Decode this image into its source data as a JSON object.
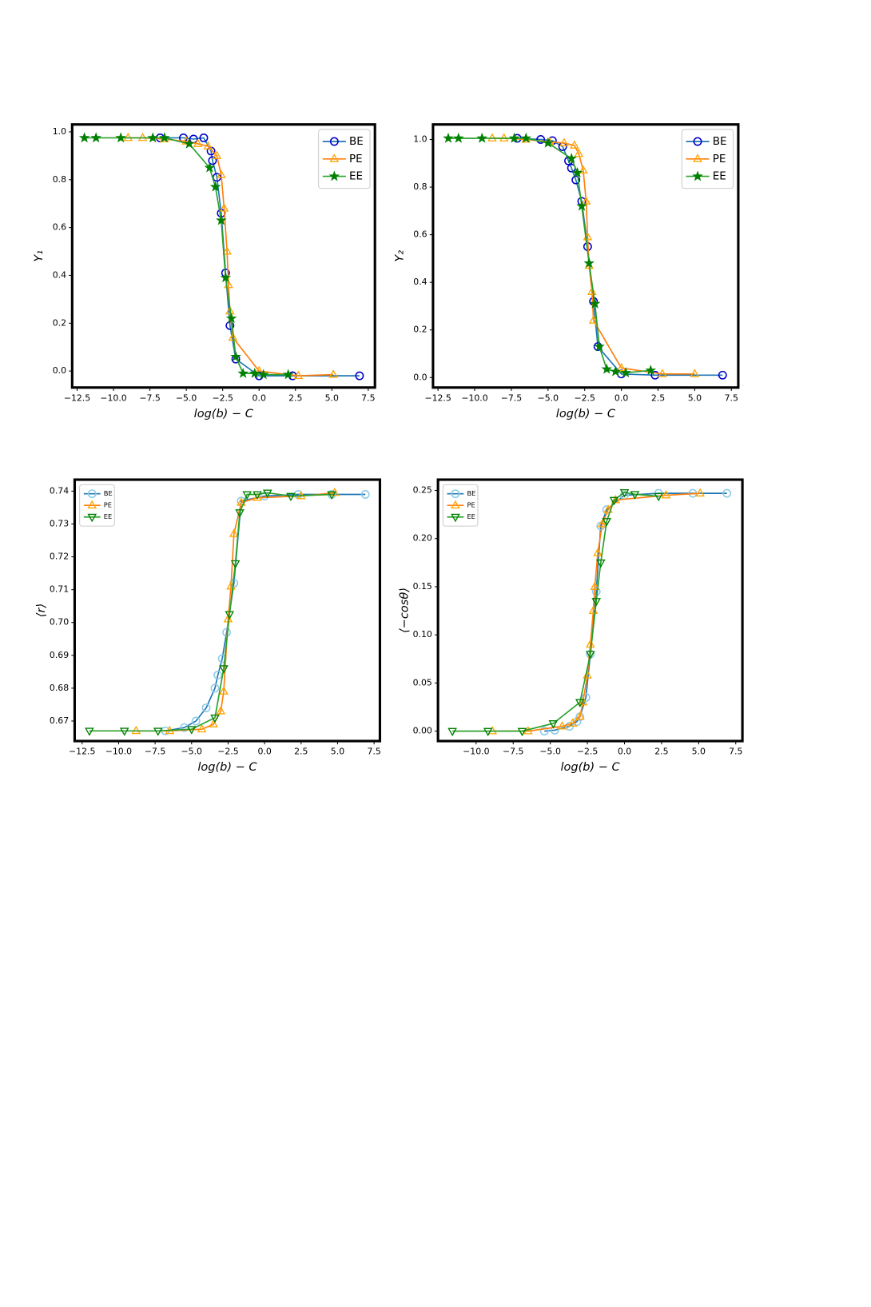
{
  "chart_data": [
    {
      "type": "line",
      "xlabel": "log(b) − C",
      "ylabel": "Y₁",
      "legend": "upper right",
      "xlim": [
        -12.84,
        7.96
      ],
      "ylim": [
        -0.069,
        1.031
      ],
      "xticks": [
        {
          "value": -12.5,
          "label": "−12.5"
        },
        {
          "value": -10,
          "label": "−10.0"
        },
        {
          "value": -7.5,
          "label": "−7.5"
        },
        {
          "value": -5,
          "label": "−5.0"
        },
        {
          "value": -2.5,
          "label": "−2.5"
        },
        {
          "value": 0,
          "label": "0.0"
        },
        2.5,
        {
          "value": 5,
          "label": "5.0"
        },
        7.5
      ],
      "yticks": [
        {
          "value": 0,
          "label": "0.0"
        },
        0.2,
        0.4,
        0.6,
        0.8,
        {
          "value": 1,
          "label": "1.0"
        }
      ],
      "series": [
        {
          "name": "BE",
          "color": "#1f77b4",
          "marker": "circle",
          "marker_color": "#0000cc",
          "x": [
            -6.8,
            -5.2,
            -4.5,
            -3.8,
            -3.3,
            -3.2,
            -2.9,
            -2.6,
            -2.3,
            -2.0,
            -1.6,
            0.0,
            2.3,
            6.9
          ],
          "values": [
            0.975,
            0.975,
            0.97,
            0.975,
            0.92,
            0.88,
            0.81,
            0.66,
            0.41,
            0.19,
            0.05,
            -0.02,
            -0.02,
            -0.02
          ]
        },
        {
          "name": "PE",
          "color": "#ff7f0e",
          "marker": "triangle-up",
          "marker_color": "#ffa500",
          "x": [
            -9.0,
            -8.0,
            -6.5,
            -5.0,
            -4.2,
            -3.5,
            -2.9,
            -2.6,
            -2.4,
            -2.2,
            -2.1,
            -2.0,
            -1.8,
            0.0,
            2.7,
            5.1
          ],
          "values": [
            0.975,
            0.975,
            0.97,
            0.96,
            0.95,
            0.94,
            0.9,
            0.82,
            0.68,
            0.5,
            0.36,
            0.25,
            0.14,
            0.0,
            -0.02,
            -0.015
          ]
        },
        {
          "name": "EE",
          "color": "#2ca02c",
          "marker": "star",
          "marker_color": "#008000",
          "x": [
            -12.0,
            -11.2,
            -9.5,
            -7.3,
            -6.5,
            -4.8,
            -3.4,
            -3.0,
            -2.6,
            -2.3,
            -1.9,
            -1.6,
            -1.1,
            -0.3,
            0.3,
            2.0
          ],
          "values": [
            0.975,
            0.975,
            0.975,
            0.975,
            0.975,
            0.95,
            0.85,
            0.77,
            0.63,
            0.39,
            0.22,
            0.06,
            -0.01,
            -0.01,
            -0.015,
            -0.015
          ]
        }
      ]
    },
    {
      "type": "line",
      "xlabel": "log(b) − C",
      "ylabel": "Y₂",
      "legend": "upper right",
      "xlim": [
        -12.84,
        7.97
      ],
      "ylim": [
        -0.042,
        1.063
      ],
      "xticks": [
        {
          "value": -12.5,
          "label": "−12.5"
        },
        {
          "value": -10,
          "label": "−10.0"
        },
        {
          "value": -7.5,
          "label": "−7.5"
        },
        {
          "value": -5,
          "label": "−5.0"
        },
        {
          "value": -2.5,
          "label": "−2.5"
        },
        {
          "value": 0,
          "label": "0.0"
        },
        2.5,
        {
          "value": 5,
          "label": "5.0"
        },
        7.5
      ],
      "yticks": [
        {
          "value": 0,
          "label": "0.0"
        },
        0.2,
        0.4,
        0.6,
        0.8,
        {
          "value": 1,
          "label": "1.0"
        }
      ],
      "series": [
        {
          "name": "BE",
          "color": "#1f77b4",
          "marker": "circle",
          "marker_color": "#0000cc",
          "x": [
            -7.1,
            -5.5,
            -4.7,
            -4.0,
            -3.6,
            -3.4,
            -3.1,
            -2.7,
            -2.3,
            -1.9,
            -1.6,
            0.0,
            2.3,
            6.9
          ],
          "values": [
            1.005,
            1.0,
            0.995,
            0.97,
            0.91,
            0.88,
            0.83,
            0.74,
            0.55,
            0.32,
            0.13,
            0.015,
            0.01,
            0.01
          ]
        },
        {
          "name": "PE",
          "color": "#ff7f0e",
          "marker": "triangle-up",
          "marker_color": "#ffa500",
          "x": [
            -8.8,
            -8.0,
            -6.5,
            -4.9,
            -3.9,
            -3.2,
            -2.9,
            -2.6,
            -2.4,
            -2.3,
            -2.2,
            -2.0,
            -1.9,
            0.0,
            2.8,
            5.0
          ],
          "values": [
            1.005,
            1.005,
            1.0,
            0.99,
            0.985,
            0.975,
            0.94,
            0.87,
            0.74,
            0.59,
            0.47,
            0.36,
            0.24,
            0.04,
            0.015,
            0.015
          ]
        },
        {
          "name": "EE",
          "color": "#2ca02c",
          "marker": "star",
          "marker_color": "#008000",
          "x": [
            -11.8,
            -11.1,
            -9.5,
            -7.3,
            -6.5,
            -5.0,
            -3.4,
            -3.0,
            -2.7,
            -2.2,
            -1.8,
            -1.5,
            -1.0,
            -0.4,
            0.3,
            2.0
          ],
          "values": [
            1.005,
            1.005,
            1.005,
            1.005,
            1.005,
            0.985,
            0.92,
            0.86,
            0.72,
            0.48,
            0.31,
            0.13,
            0.035,
            0.025,
            0.02,
            0.03
          ]
        }
      ]
    },
    {
      "type": "line",
      "xlabel": "log(b) − C",
      "ylabel": "⟨r⟩",
      "legend": "upper left",
      "xlim": [
        -13.01,
        7.9
      ],
      "ylim": [
        0.6639,
        0.7435
      ],
      "xticks": [
        {
          "value": -12.5,
          "label": "−12.5"
        },
        {
          "value": -10,
          "label": "−10.0"
        },
        {
          "value": -7.5,
          "label": "−7.5"
        },
        {
          "value": -5,
          "label": "−5.0"
        },
        {
          "value": -2.5,
          "label": "−2.5"
        },
        {
          "value": 0,
          "label": "0.0"
        },
        2.5,
        {
          "value": 5,
          "label": "5.0"
        },
        7.5
      ],
      "yticks": [
        0.67,
        0.68,
        0.69,
        {
          "value": 0.7,
          "label": "0.70"
        },
        0.71,
        0.72,
        0.73,
        0.74
      ],
      "series": [
        {
          "name": "BE",
          "color": "#1f77b4",
          "marker": "circle",
          "marker_color": "#8ecae6",
          "x": [
            -6.8,
            -5.5,
            -4.7,
            -4.0,
            -3.4,
            -3.2,
            -2.9,
            -2.6,
            -2.1,
            -1.6,
            0.0,
            2.3,
            4.6,
            6.9
          ],
          "values": [
            0.667,
            0.668,
            0.67,
            0.674,
            0.68,
            0.684,
            0.689,
            0.697,
            0.712,
            0.737,
            0.7385,
            0.739,
            0.739,
            0.739
          ]
        },
        {
          "name": "PE",
          "color": "#ff7f0e",
          "marker": "triangle-up",
          "marker_color": "#ffa500",
          "x": [
            -8.8,
            -6.5,
            -4.3,
            -3.5,
            -3.0,
            -2.8,
            -2.5,
            -2.3,
            -2.1,
            -1.6,
            -0.5,
            2.5,
            4.8
          ],
          "values": [
            0.667,
            0.667,
            0.6675,
            0.669,
            0.673,
            0.679,
            0.701,
            0.711,
            0.727,
            0.7365,
            0.738,
            0.7385,
            0.7395
          ]
        },
        {
          "name": "EE",
          "color": "#2ca02c",
          "marker": "triangle-down",
          "marker_color": "#008000",
          "x": [
            -12.0,
            -9.6,
            -7.3,
            -5.0,
            -3.4,
            -2.8,
            -2.4,
            -2.0,
            -1.7,
            -1.2,
            -0.5,
            0.2,
            1.8,
            4.6
          ],
          "values": [
            0.667,
            0.667,
            0.667,
            0.6675,
            0.671,
            0.686,
            0.7025,
            0.718,
            0.7335,
            0.739,
            0.739,
            0.7395,
            0.7385,
            0.739
          ]
        }
      ]
    },
    {
      "type": "line",
      "xlabel": "log(b) − C",
      "ylabel": "⟨−cosθ⟩",
      "legend": "upper left",
      "xlim": [
        -12.57,
        7.95
      ],
      "ylim": [
        -0.0103,
        0.2612
      ],
      "xticks": [
        {
          "value": -10,
          "label": "−10.0"
        },
        {
          "value": -7.5,
          "label": "−7.5"
        },
        {
          "value": -5,
          "label": "−5.0"
        },
        {
          "value": -2.5,
          "label": "−2.5"
        },
        {
          "value": 0,
          "label": "0.0"
        },
        2.5,
        {
          "value": 5,
          "label": "5.0"
        },
        7.5
      ],
      "yticks": [
        {
          "value": 0,
          "label": "0.00"
        },
        0.05,
        {
          "value": 0.1,
          "label": "0.10"
        },
        0.15,
        {
          "value": 0.2,
          "label": "0.20"
        },
        0.25
      ],
      "series": [
        {
          "name": "BE",
          "color": "#1f77b4",
          "marker": "circle",
          "marker_color": "#8ecae6",
          "x": [
            -5.4,
            -4.7,
            -3.7,
            -3.2,
            -3.0,
            -2.6,
            -2.3,
            -1.9,
            -1.6,
            -1.2,
            0.0,
            2.3,
            4.6,
            6.9
          ],
          "values": [
            0.0,
            0.001,
            0.005,
            0.01,
            0.015,
            0.035,
            0.08,
            0.145,
            0.213,
            0.23,
            0.245,
            0.247,
            0.247,
            0.247
          ]
        },
        {
          "name": "PE",
          "color": "#ff7f0e",
          "marker": "triangle-up",
          "marker_color": "#ffa500",
          "x": [
            -8.9,
            -6.5,
            -4.2,
            -3.5,
            -3.0,
            -2.8,
            -2.5,
            -2.3,
            -2.1,
            -2.0,
            -1.8,
            -1.5,
            -1.1,
            -0.6,
            2.8,
            5.1
          ],
          "values": [
            0.0,
            0.0,
            0.005,
            0.008,
            0.015,
            0.03,
            0.058,
            0.09,
            0.125,
            0.15,
            0.185,
            0.215,
            0.23,
            0.24,
            0.245,
            0.247
          ]
        },
        {
          "name": "EE",
          "color": "#2ca02c",
          "marker": "triangle-down",
          "marker_color": "#008000",
          "x": [
            -11.6,
            -9.2,
            -6.9,
            -4.8,
            -3.0,
            -2.3,
            -1.9,
            -1.6,
            -1.2,
            -0.7,
            0.0,
            0.7,
            2.3
          ],
          "values": [
            0.0,
            0.0,
            0.0,
            0.008,
            0.03,
            0.08,
            0.135,
            0.175,
            0.218,
            0.24,
            0.248,
            0.246,
            0.244
          ]
        }
      ]
    }
  ]
}
